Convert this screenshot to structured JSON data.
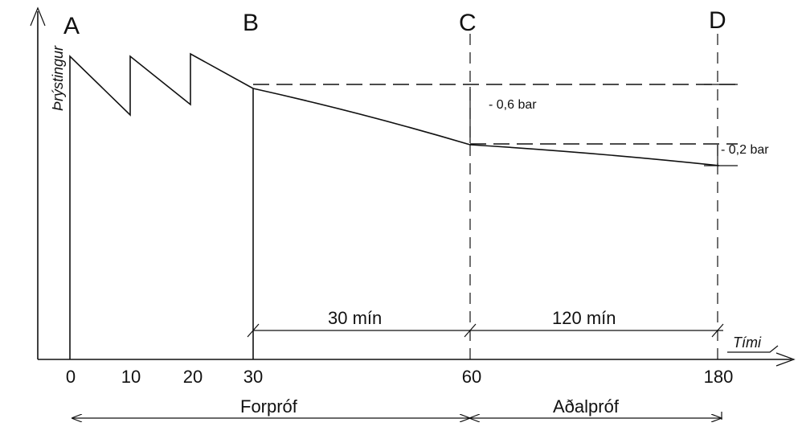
{
  "y_axis_label": "Þrýstingur",
  "x_axis_label": "Tími",
  "points": [
    "A",
    "B",
    "C",
    "D"
  ],
  "ticks": [
    "0",
    "10",
    "20",
    "30",
    "60",
    "180"
  ],
  "durations": [
    "30  mín",
    "120  mín"
  ],
  "pressure_drops": [
    "- 0,6 bar",
    "- 0,2 bar"
  ],
  "phases": [
    "Forpróf",
    "Aðalpróf"
  ]
}
